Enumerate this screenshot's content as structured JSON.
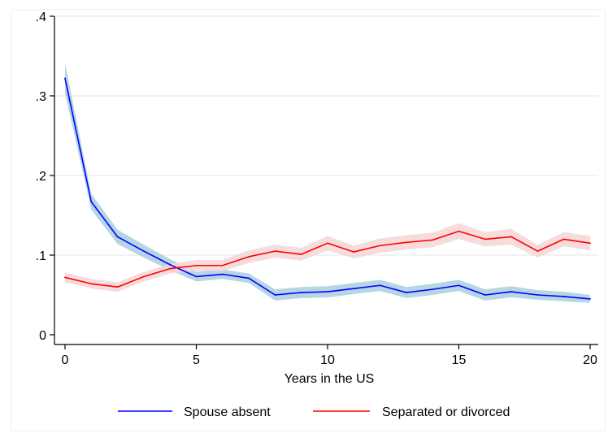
{
  "chart_data": {
    "type": "line",
    "title": "",
    "xlabel": "Years in the US",
    "ylabel": "",
    "xlim": [
      0,
      20
    ],
    "ylim": [
      0,
      0.4
    ],
    "xticks": [
      0,
      5,
      10,
      15,
      20
    ],
    "xtick_labels": [
      "0",
      "5",
      "10",
      "15",
      "20"
    ],
    "yticks": [
      0,
      0.1,
      0.2,
      0.3,
      0.4
    ],
    "ytick_labels": [
      "0",
      ".1",
      ".2",
      ".3",
      ".4"
    ],
    "grid": "horizontal",
    "legend_position": "bottom",
    "x": [
      0,
      1,
      2,
      3,
      4,
      5,
      6,
      7,
      8,
      9,
      10,
      11,
      12,
      13,
      14,
      15,
      16,
      17,
      18,
      19,
      20
    ],
    "series": [
      {
        "name": "Spouse absent",
        "color": "#0000ff",
        "band_color": "#a9cfe0",
        "values": [
          0.322,
          0.167,
          0.123,
          0.105,
          0.088,
          0.073,
          0.076,
          0.071,
          0.05,
          0.053,
          0.054,
          0.058,
          0.062,
          0.053,
          0.057,
          0.062,
          0.05,
          0.054,
          0.05,
          0.048,
          0.045
        ],
        "lower": [
          0.303,
          0.157,
          0.114,
          0.097,
          0.081,
          0.067,
          0.07,
          0.065,
          0.043,
          0.046,
          0.047,
          0.051,
          0.055,
          0.046,
          0.05,
          0.055,
          0.043,
          0.047,
          0.044,
          0.042,
          0.04
        ],
        "upper": [
          0.341,
          0.177,
          0.132,
          0.113,
          0.095,
          0.079,
          0.082,
          0.077,
          0.057,
          0.06,
          0.061,
          0.065,
          0.069,
          0.06,
          0.064,
          0.069,
          0.057,
          0.061,
          0.056,
          0.054,
          0.05
        ]
      },
      {
        "name": "Separated or divorced",
        "color": "#ff0000",
        "band_color": "#f5d6d6",
        "values": [
          0.072,
          0.064,
          0.06,
          0.073,
          0.083,
          0.087,
          0.087,
          0.098,
          0.105,
          0.101,
          0.115,
          0.104,
          0.112,
          0.116,
          0.119,
          0.13,
          0.12,
          0.123,
          0.105,
          0.12,
          0.115
        ],
        "lower": [
          0.066,
          0.058,
          0.054,
          0.067,
          0.077,
          0.08,
          0.08,
          0.09,
          0.097,
          0.093,
          0.106,
          0.096,
          0.103,
          0.107,
          0.11,
          0.12,
          0.111,
          0.113,
          0.097,
          0.111,
          0.106
        ],
        "upper": [
          0.078,
          0.07,
          0.066,
          0.079,
          0.089,
          0.094,
          0.094,
          0.106,
          0.113,
          0.109,
          0.124,
          0.112,
          0.121,
          0.125,
          0.128,
          0.14,
          0.129,
          0.133,
          0.113,
          0.129,
          0.124
        ]
      }
    ]
  }
}
